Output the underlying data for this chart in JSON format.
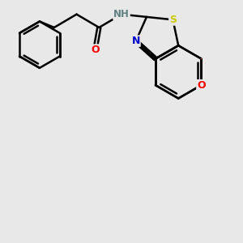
{
  "bg_color": "#e8e8e8",
  "bond_color": "#000000",
  "bond_width": 1.8,
  "atom_colors": {
    "N": "#0000cc",
    "S": "#cccc00",
    "O": "#ff0000",
    "NH": "#608080"
  },
  "fig_size": [
    3.0,
    3.0
  ],
  "dpi": 100,
  "xlim": [
    0.0,
    6.5
  ],
  "ylim": [
    0.0,
    6.5
  ]
}
